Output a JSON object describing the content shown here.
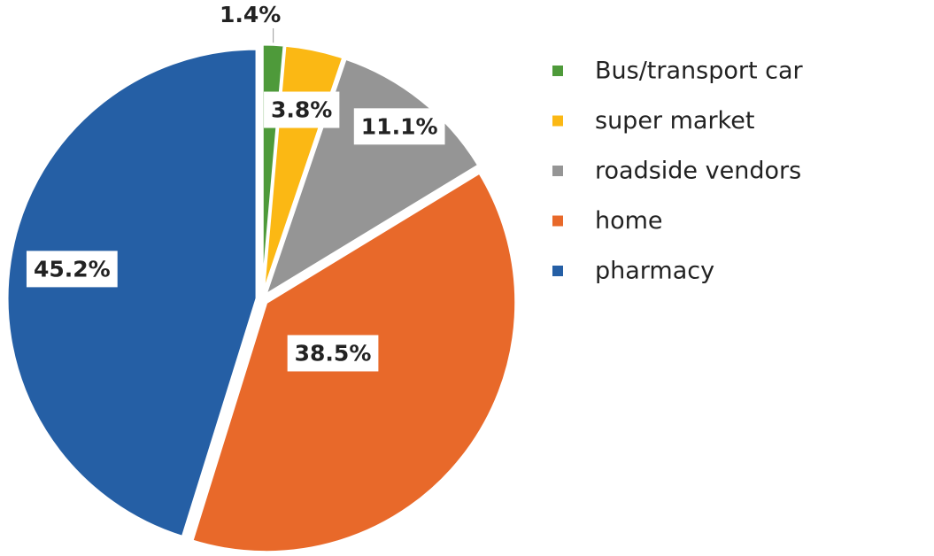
{
  "chart_data": {
    "type": "pie",
    "categories": [
      "Bus/transport car",
      "super market",
      "roadside vendors",
      "home",
      "pharmacy"
    ],
    "values": [
      1.4,
      3.8,
      11.1,
      38.5,
      45.2
    ],
    "value_labels": [
      "1.4%",
      "3.8%",
      "11.1%",
      "38.5%",
      "45.2%"
    ],
    "colors": [
      "#4e9a3a",
      "#fbb814",
      "#959595",
      "#e8692a",
      "#255fa5"
    ],
    "legend": "right"
  }
}
